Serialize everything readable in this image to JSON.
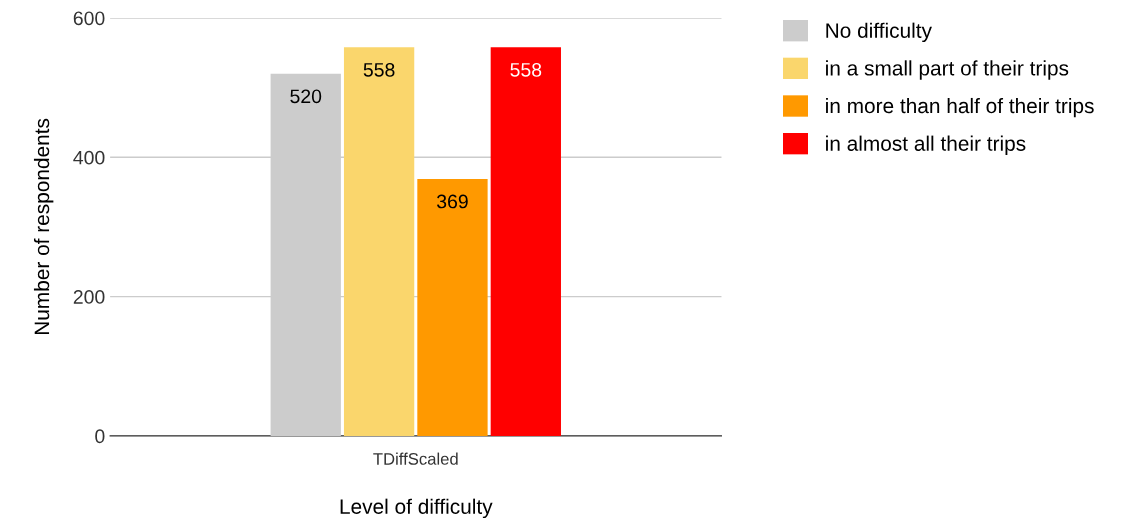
{
  "chart_data": {
    "type": "bar",
    "xlabel": "Level of difficulty",
    "ylabel": "Number of respondents",
    "categories": [
      "TDiffScaled"
    ],
    "series": [
      {
        "name": "No difficulty",
        "color": "#cccccc",
        "values": [
          520
        ]
      },
      {
        "name": "in a small part of their trips",
        "color": "#fad66c",
        "values": [
          558
        ]
      },
      {
        "name": "in more than half of their trips",
        "color": "#ff9900",
        "values": [
          369
        ]
      },
      {
        "name": "in almost all their trips",
        "color": "#ff0000",
        "values": [
          558
        ]
      }
    ],
    "ylim": [
      0,
      600
    ],
    "yticks": [
      0,
      200,
      400,
      600
    ],
    "grid": "y",
    "legend": "top right",
    "data_labels": true
  }
}
